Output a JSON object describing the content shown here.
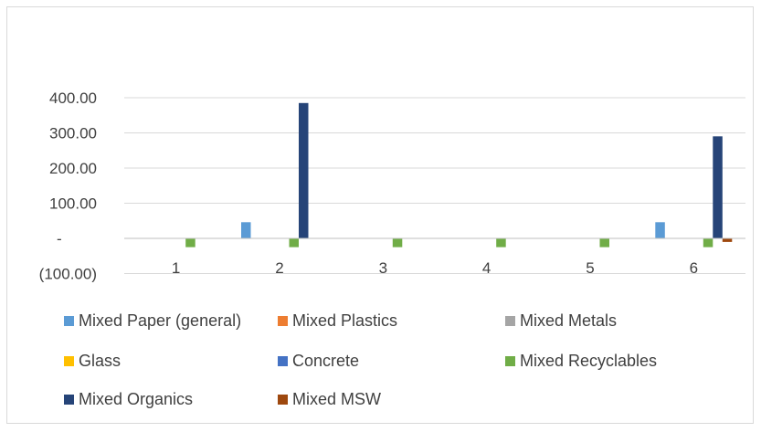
{
  "chart_data": {
    "type": "bar",
    "title": "",
    "xlabel": "",
    "ylabel": "",
    "categories": [
      "1",
      "2",
      "3",
      "4",
      "5",
      "6"
    ],
    "y_tick_labels": [
      "(100.00)",
      "-",
      "100.00",
      "200.00",
      "300.00",
      "400.00"
    ],
    "ylim": [
      -100,
      400
    ],
    "grid": true,
    "legend_position": "bottom",
    "series": [
      {
        "name": "Mixed Paper (general)",
        "color": "#5B9BD5",
        "values": [
          0,
          46,
          0,
          0,
          0,
          46
        ]
      },
      {
        "name": "Mixed Plastics",
        "color": "#ED7D31",
        "values": [
          0,
          0,
          0,
          0,
          0,
          0
        ]
      },
      {
        "name": "Mixed Metals",
        "color": "#A5A5A5",
        "values": [
          0,
          0,
          0,
          0,
          0,
          0
        ]
      },
      {
        "name": "Glass",
        "color": "#FFC000",
        "values": [
          0,
          0,
          0,
          0,
          0,
          0
        ]
      },
      {
        "name": "Concrete",
        "color": "#4472C4",
        "values": [
          0,
          0,
          0,
          0,
          0,
          0
        ]
      },
      {
        "name": "Mixed Recyclables",
        "color": "#70AD47",
        "values": [
          -25,
          -25,
          -25,
          -25,
          -25,
          -25
        ]
      },
      {
        "name": "Mixed Organics",
        "color": "#264478",
        "values": [
          0,
          385,
          0,
          0,
          0,
          290
        ]
      },
      {
        "name": "Mixed MSW",
        "color": "#9E480E",
        "values": [
          0,
          0,
          0,
          0,
          0,
          -10
        ]
      }
    ]
  }
}
